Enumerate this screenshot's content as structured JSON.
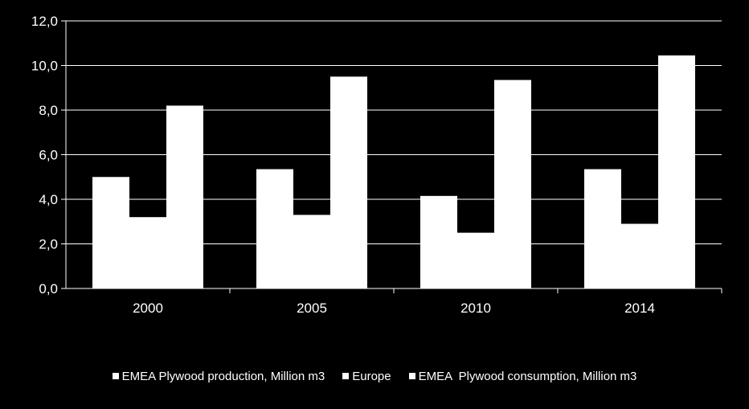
{
  "chart_data": {
    "type": "bar",
    "categories": [
      "2000",
      "2005",
      "2010",
      "2014"
    ],
    "series": [
      {
        "name": "EMEA Plywood production, Million m3",
        "values": [
          5.0,
          5.35,
          4.15,
          5.35
        ]
      },
      {
        "name": "Europe",
        "values": [
          3.2,
          3.3,
          2.5,
          2.9
        ]
      },
      {
        "name": "EMEA  Plywood consumption, Million m3",
        "values": [
          8.2,
          9.5,
          9.35,
          10.45
        ]
      }
    ],
    "yticks": [
      "0,0",
      "2,0",
      "4,0",
      "6,0",
      "8,0",
      "10,0",
      "12,0"
    ],
    "ylim": [
      0,
      12
    ],
    "grid": true,
    "legend_position": "bottom",
    "colors": {
      "background": "#000000",
      "bars": "#ffffff",
      "text": "#ffffff",
      "grid": "#ffffff"
    }
  }
}
